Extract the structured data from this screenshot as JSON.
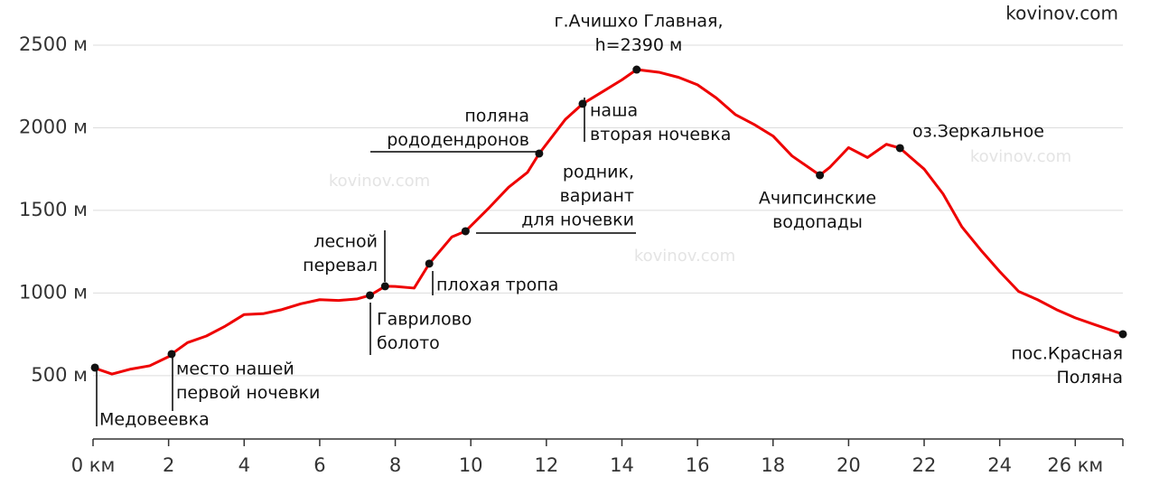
{
  "chart_data": {
    "type": "line",
    "x": [
      0,
      0.5,
      1,
      1.5,
      2,
      2.08,
      2.5,
      3,
      3.5,
      4,
      4.5,
      5,
      5.5,
      6,
      6.5,
      7,
      7.33,
      7.73,
      8,
      8.5,
      8.9,
      9.5,
      9.86,
      10.5,
      11,
      11.5,
      11.81,
      12.5,
      12.96,
      13.5,
      14,
      14.39,
      15,
      15.5,
      16,
      16.5,
      17,
      17.5,
      18,
      18.5,
      19.24,
      19.5,
      20,
      20.5,
      21,
      21.36,
      22,
      22.5,
      23,
      23.5,
      24,
      24.5,
      25,
      25.5,
      26,
      26.5,
      27.26
    ],
    "series": [
      {
        "color": "#ee0000",
        "values": [
          549,
          510,
          540,
          560,
          615,
          631,
          700,
          740,
          800,
          870,
          875,
          900,
          935,
          960,
          955,
          965,
          986,
          1041,
          1040,
          1030,
          1178,
          1340,
          1374,
          1520,
          1640,
          1730,
          1844,
          2050,
          2145,
          2220,
          2290,
          2352,
          2335,
          2305,
          2260,
          2180,
          2080,
          2020,
          1950,
          1830,
          1713,
          1760,
          1880,
          1820,
          1900,
          1877,
          1750,
          1600,
          1400,
          1260,
          1130,
          1010,
          960,
          900,
          850,
          810,
          751
        ]
      }
    ],
    "markers": [
      {
        "x": 0.05,
        "y": 549,
        "label": [
          "Медовеевка"
        ]
      },
      {
        "x": 2.08,
        "y": 631,
        "label": [
          "место нашей",
          "первой ночевки"
        ]
      },
      {
        "x": 7.33,
        "y": 986,
        "label": [
          "Гаврилово",
          "болото"
        ]
      },
      {
        "x": 7.73,
        "y": 1041,
        "label": [
          "лесной",
          "перевал"
        ]
      },
      {
        "x": 8.9,
        "y": 1178,
        "label": [
          "плохая тропа"
        ]
      },
      {
        "x": 9.86,
        "y": 1374,
        "label": [
          "родник,",
          "вариант",
          "для ночевки"
        ]
      },
      {
        "x": 11.81,
        "y": 1844,
        "label": [
          "поляна",
          "рододендронов"
        ]
      },
      {
        "x": 12.96,
        "y": 2145,
        "label": [
          "наша",
          "вторая ночевка"
        ]
      },
      {
        "x": 14.39,
        "y": 2352,
        "label": [
          "г.Ачишхо Главная,",
          "h=2390 м"
        ]
      },
      {
        "x": 19.24,
        "y": 1713,
        "label": [
          "Ачипсинские",
          "водопады"
        ]
      },
      {
        "x": 21.36,
        "y": 1877,
        "label": [
          "оз.Зеркальное"
        ]
      },
      {
        "x": 27.26,
        "y": 751,
        "label": [
          "пос.Красная",
          "Поляна"
        ]
      }
    ],
    "watermarks": [
      "kovinov.com",
      "kovinov.com",
      "kovinov.com",
      "kovinov.com"
    ],
    "xlim": [
      0,
      27.26
    ],
    "ylim": [
      117,
      2773
    ],
    "xticks": [
      {
        "value": 0,
        "label": "0 км"
      },
      2,
      4,
      6,
      8,
      10,
      12,
      14,
      16,
      18,
      20,
      22,
      24,
      {
        "value": 26,
        "label": "26 км"
      }
    ],
    "yticks": [
      {
        "value": 500,
        "label": "500 м"
      },
      {
        "value": 1000,
        "label": "1000 м"
      },
      {
        "value": 1500,
        "label": "1500 м"
      },
      {
        "value": 2000,
        "label": "2000 м"
      },
      {
        "value": 2500,
        "label": "2500 м"
      }
    ],
    "grid": true
  }
}
